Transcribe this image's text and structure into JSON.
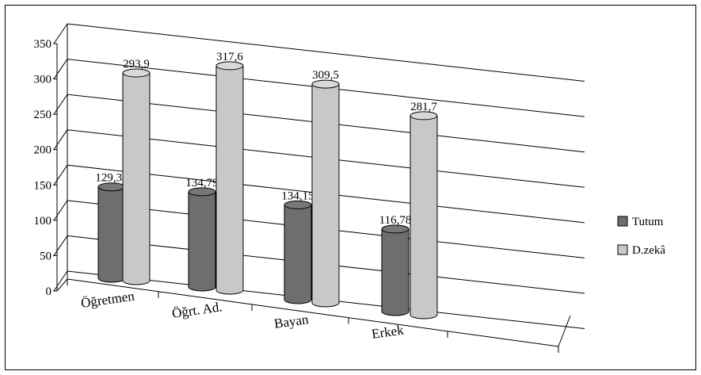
{
  "chart_data": {
    "type": "bar",
    "style": "3d-cylinder",
    "categories": [
      "Öğretmen",
      "Öğrt. Ad.",
      "Bayan",
      "Erkek"
    ],
    "series": [
      {
        "name": "Tutum",
        "values": [
          129.33,
          134.79,
          134.15,
          116.78
        ],
        "labels": [
          "129,33",
          "134,79",
          "134,15",
          "116,78"
        ],
        "color": "#6e6e6e"
      },
      {
        "name": "D.zekâ",
        "values": [
          293.9,
          317.6,
          309.5,
          281.7
        ],
        "labels": [
          "293,9",
          "317,6",
          "309,5",
          "281,7"
        ],
        "color": "#c8c8c8"
      }
    ],
    "ylim": [
      0,
      350
    ],
    "yticks": [
      0,
      50,
      100,
      150,
      200,
      250,
      300,
      350
    ],
    "grid": true,
    "legend_position": "right"
  }
}
